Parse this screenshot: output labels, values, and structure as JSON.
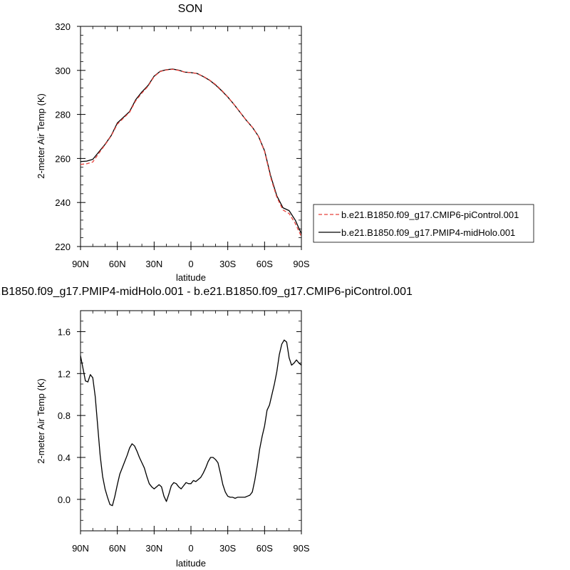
{
  "chart_data": [
    {
      "type": "line",
      "title": "SON",
      "xlabel": "latitude",
      "ylabel": "2-meter Air Temp (K)",
      "xlim": [
        90,
        -90
      ],
      "ylim": [
        220,
        320
      ],
      "xticks": [
        90,
        60,
        30,
        0,
        -30,
        -60,
        -90
      ],
      "xtick_labels": [
        "90N",
        "60N",
        "30N",
        "0",
        "30S",
        "60S",
        "90S"
      ],
      "yticks": [
        220,
        240,
        260,
        280,
        300,
        320
      ],
      "ytick_labels": [
        "220",
        "240",
        "260",
        "280",
        "300",
        "320"
      ],
      "legend_position": "right",
      "series": [
        {
          "name": "b.e21.B1850.f09_g17.CMIP6-piControl.001",
          "color": "#e8403a",
          "dash": "dashed",
          "x": [
            90,
            85,
            80,
            75,
            70,
            65,
            60,
            55,
            50,
            45,
            40,
            35,
            30,
            25,
            20,
            15,
            10,
            5,
            0,
            -5,
            -10,
            -15,
            -20,
            -25,
            -30,
            -35,
            -40,
            -45,
            -50,
            -55,
            -60,
            -65,
            -70,
            -75,
            -80,
            -85,
            -90
          ],
          "y": [
            257.3,
            257.6,
            258.4,
            262.4,
            266.2,
            270.2,
            275.6,
            278.3,
            281.0,
            286.2,
            289.7,
            292.8,
            297.2,
            299.5,
            300.2,
            300.5,
            300.0,
            299.2,
            299.0,
            298.6,
            297.3,
            295.7,
            293.6,
            291.0,
            288.0,
            284.6,
            281.0,
            277.4,
            274.2,
            270.1,
            263.2,
            251.3,
            242.4,
            236.6,
            235.0,
            230.5,
            224.5
          ]
        },
        {
          "name": "b.e21.B1850.f09_g17.PMIP4-midHolo.001",
          "color": "#000000",
          "dash": "solid",
          "x": [
            90,
            85,
            80,
            75,
            70,
            65,
            60,
            55,
            50,
            45,
            40,
            35,
            30,
            25,
            20,
            15,
            10,
            5,
            0,
            -5,
            -10,
            -15,
            -20,
            -25,
            -30,
            -35,
            -40,
            -45,
            -50,
            -55,
            -60,
            -65,
            -70,
            -75,
            -80,
            -85,
            -90
          ],
          "y": [
            258.6,
            258.8,
            259.6,
            263.0,
            266.4,
            270.4,
            276.1,
            278.7,
            281.3,
            286.7,
            290.2,
            293.1,
            297.4,
            299.6,
            300.3,
            300.6,
            300.1,
            299.2,
            299.0,
            298.6,
            297.2,
            295.6,
            293.4,
            290.8,
            287.9,
            284.6,
            281.0,
            277.4,
            274.2,
            270.1,
            263.5,
            252.0,
            243.0,
            237.6,
            236.3,
            232.0,
            225.8
          ]
        }
      ]
    },
    {
      "type": "line",
      "title": "b.e21.B1850.f09_g17.PMIP4-midHolo.001 - b.e21.B1850.f09_g17.CMIP6-piControl.001",
      "xlabel": "latitude",
      "ylabel": "2-meter Air Temp (K)",
      "xlim": [
        90,
        -90
      ],
      "ylim": [
        -0.3,
        1.8
      ],
      "xticks": [
        90,
        60,
        30,
        0,
        -30,
        -60,
        -90
      ],
      "xtick_labels": [
        "90N",
        "60N",
        "30N",
        "0",
        "30S",
        "60S",
        "90S"
      ],
      "yticks": [
        0.0,
        0.4,
        0.8,
        1.2,
        1.6
      ],
      "ytick_labels": [
        "0.0",
        "0.4",
        "0.8",
        "1.2",
        "1.6"
      ],
      "series": [
        {
          "color": "#000000",
          "dash": "solid",
          "x": [
            90,
            88,
            86,
            84,
            82,
            80,
            78,
            76,
            74,
            72,
            70,
            68,
            66,
            64,
            62,
            60,
            58,
            56,
            54,
            52,
            50,
            48,
            46,
            44,
            42,
            40,
            38,
            36,
            34,
            32,
            30,
            28,
            26,
            24,
            22,
            20,
            18,
            16,
            14,
            12,
            10,
            8,
            6,
            4,
            2,
            0,
            -2,
            -4,
            -6,
            -8,
            -10,
            -12,
            -14,
            -16,
            -18,
            -20,
            -22,
            -24,
            -26,
            -28,
            -30,
            -32,
            -34,
            -36,
            -38,
            -40,
            -42,
            -44,
            -46,
            -48,
            -50,
            -52,
            -54,
            -56,
            -58,
            -60,
            -62,
            -64,
            -66,
            -68,
            -70,
            -72,
            -74,
            -76,
            -78,
            -80,
            -82,
            -84,
            -86,
            -88,
            -90
          ],
          "y": [
            1.37,
            1.25,
            1.13,
            1.12,
            1.19,
            1.16,
            0.98,
            0.7,
            0.42,
            0.22,
            0.1,
            0.02,
            -0.05,
            -0.06,
            0.03,
            0.14,
            0.24,
            0.3,
            0.36,
            0.42,
            0.49,
            0.53,
            0.51,
            0.46,
            0.4,
            0.35,
            0.3,
            0.22,
            0.15,
            0.12,
            0.1,
            0.12,
            0.14,
            0.12,
            0.03,
            -0.02,
            0.05,
            0.13,
            0.16,
            0.15,
            0.12,
            0.1,
            0.13,
            0.16,
            0.15,
            0.15,
            0.18,
            0.17,
            0.19,
            0.21,
            0.25,
            0.3,
            0.36,
            0.4,
            0.4,
            0.38,
            0.35,
            0.25,
            0.14,
            0.07,
            0.03,
            0.02,
            0.02,
            0.01,
            0.02,
            0.02,
            0.02,
            0.02,
            0.03,
            0.04,
            0.07,
            0.18,
            0.32,
            0.48,
            0.6,
            0.7,
            0.85,
            0.9,
            1.0,
            1.1,
            1.22,
            1.38,
            1.48,
            1.52,
            1.5,
            1.35,
            1.28,
            1.3,
            1.33,
            1.3,
            1.28
          ]
        }
      ]
    }
  ]
}
